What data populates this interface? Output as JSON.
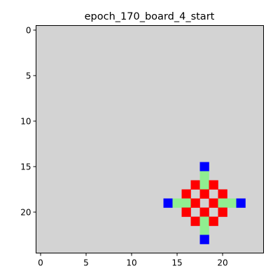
{
  "figure": {
    "title": "epoch_170_board_4_start"
  },
  "board": {
    "rows": 25,
    "cols": 25,
    "background_color": "#d3d3d3",
    "palette": {
      "red": "#ff0000",
      "green": "#90ee90",
      "blue": "#0000ff"
    },
    "cells": [
      {
        "row": 15,
        "col": 18,
        "color": "blue"
      },
      {
        "row": 16,
        "col": 18,
        "color": "green"
      },
      {
        "row": 17,
        "col": 17,
        "color": "red"
      },
      {
        "row": 17,
        "col": 18,
        "color": "green"
      },
      {
        "row": 17,
        "col": 19,
        "color": "red"
      },
      {
        "row": 18,
        "col": 16,
        "color": "red"
      },
      {
        "row": 18,
        "col": 18,
        "color": "red"
      },
      {
        "row": 18,
        "col": 20,
        "color": "red"
      },
      {
        "row": 19,
        "col": 14,
        "color": "blue"
      },
      {
        "row": 19,
        "col": 15,
        "color": "green"
      },
      {
        "row": 19,
        "col": 16,
        "color": "green"
      },
      {
        "row": 19,
        "col": 17,
        "color": "red"
      },
      {
        "row": 19,
        "col": 19,
        "color": "red"
      },
      {
        "row": 19,
        "col": 20,
        "color": "green"
      },
      {
        "row": 19,
        "col": 21,
        "color": "green"
      },
      {
        "row": 19,
        "col": 22,
        "color": "blue"
      },
      {
        "row": 20,
        "col": 16,
        "color": "red"
      },
      {
        "row": 20,
        "col": 18,
        "color": "red"
      },
      {
        "row": 20,
        "col": 20,
        "color": "red"
      },
      {
        "row": 21,
        "col": 17,
        "color": "red"
      },
      {
        "row": 21,
        "col": 18,
        "color": "green"
      },
      {
        "row": 21,
        "col": 19,
        "color": "red"
      },
      {
        "row": 22,
        "col": 18,
        "color": "green"
      },
      {
        "row": 23,
        "col": 18,
        "color": "blue"
      }
    ]
  },
  "axes": {
    "x_ticks": [
      0,
      5,
      10,
      15,
      20
    ],
    "y_ticks": [
      0,
      5,
      10,
      15,
      20
    ],
    "x_tick_labels": [
      "0",
      "5",
      "10",
      "15",
      "20"
    ],
    "y_tick_labels": [
      "0",
      "5",
      "10",
      "15",
      "20"
    ]
  }
}
